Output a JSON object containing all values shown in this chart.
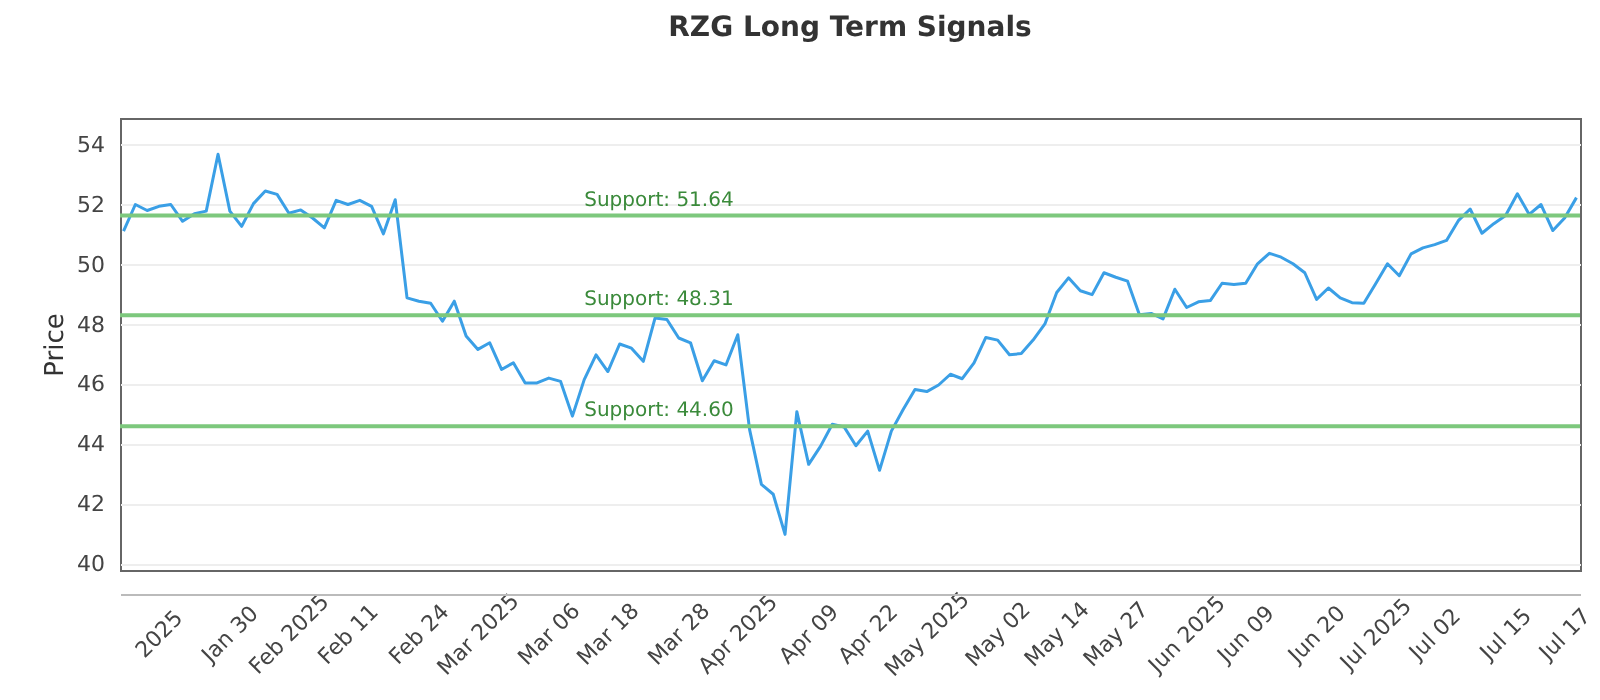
{
  "chart_data": {
    "type": "line",
    "title": "RZG Long Term Signals",
    "ylabel": "Price",
    "categories": [
      null,
      null,
      null,
      "2025",
      null,
      null,
      null,
      null,
      null,
      "Jan 30",
      null,
      null,
      null,
      null,
      "Feb 2025",
      null,
      null,
      null,
      null,
      "Feb 11",
      null,
      null,
      null,
      null,
      null,
      "Feb 24",
      null,
      null,
      null,
      null,
      "Mar 2025",
      null,
      null,
      null,
      null,
      null,
      "Mar 06",
      null,
      null,
      null,
      null,
      "Mar 18",
      null,
      null,
      null,
      null,
      null,
      "Mar 28",
      null,
      null,
      null,
      null,
      "Apr 2025",
      null,
      null,
      null,
      null,
      null,
      "Apr 09",
      null,
      null,
      null,
      null,
      "Apr 22",
      null,
      null,
      null,
      null,
      "May 2025",
      null,
      null,
      null,
      null,
      null,
      "May 02",
      null,
      null,
      null,
      null,
      "May 14",
      null,
      null,
      null,
      null,
      "May 27",
      null,
      null,
      null,
      null,
      null,
      "Jun 2025",
      null,
      null,
      null,
      null,
      "Jun 09",
      null,
      null,
      null,
      null,
      null,
      "Jun 20",
      null,
      null,
      null,
      null,
      "Jul 2025",
      null,
      null,
      null,
      null,
      "Jul 02",
      null,
      null,
      null,
      null,
      null,
      "Jul 15",
      null,
      null,
      null,
      null,
      "Jul 17",
      null
    ],
    "series": [
      {
        "color": "#3a9fe6",
        "values": [
          51.12,
          52.01,
          51.81,
          51.95,
          52.01,
          51.45,
          51.7,
          51.79,
          53.69,
          51.79,
          51.28,
          52.04,
          52.46,
          52.35,
          51.72,
          51.83,
          51.56,
          51.23,
          52.15,
          52.01,
          52.15,
          51.95,
          51.03,
          52.17,
          48.89,
          48.78,
          48.71,
          48.11,
          48.78,
          47.62,
          47.17,
          47.39,
          46.5,
          46.72,
          46.05,
          46.05,
          46.21,
          46.1,
          44.94,
          46.16,
          46.99,
          46.43,
          47.35,
          47.21,
          46.77,
          48.22,
          48.17,
          47.55,
          47.39,
          46.12,
          46.79,
          46.65,
          47.66,
          44.49,
          42.66,
          42.33,
          40.99,
          45.09,
          43.33,
          43.93,
          44.67,
          44.58,
          43.95,
          44.44,
          43.13,
          44.44,
          45.16,
          45.83,
          45.76,
          45.98,
          46.34,
          46.19,
          46.72,
          47.57,
          47.48,
          46.99,
          47.03,
          47.48,
          48.02,
          49.07,
          49.56,
          49.13,
          49.0,
          49.73,
          49.58,
          49.45,
          48.33,
          48.37,
          48.19,
          49.18,
          48.57,
          48.76,
          48.8,
          49.38,
          49.34,
          49.38,
          50.03,
          50.38,
          50.25,
          50.03,
          49.73,
          48.84,
          49.22,
          48.89,
          48.73,
          48.71,
          49.36,
          50.03,
          49.63,
          50.36,
          50.56,
          50.67,
          50.81,
          51.47,
          51.86,
          51.05,
          51.37,
          51.64,
          52.37,
          51.68,
          52.01,
          51.14,
          51.56,
          52.24
        ]
      }
    ],
    "ylim": [
      39.8,
      54.9
    ],
    "yticks": [
      40,
      42,
      44,
      46,
      48,
      50,
      52,
      54
    ],
    "grid": "y",
    "ref_lines": [
      {
        "axis": "y",
        "value": 51.64,
        "label": "Support: 51.64",
        "color": "#7dc87d"
      },
      {
        "axis": "y",
        "value": 48.31,
        "label": "Support: 48.31",
        "color": "#7dc87d"
      },
      {
        "axis": "y",
        "value": 44.6,
        "label": "Support: 44.60",
        "color": "#7dc87d"
      }
    ]
  }
}
